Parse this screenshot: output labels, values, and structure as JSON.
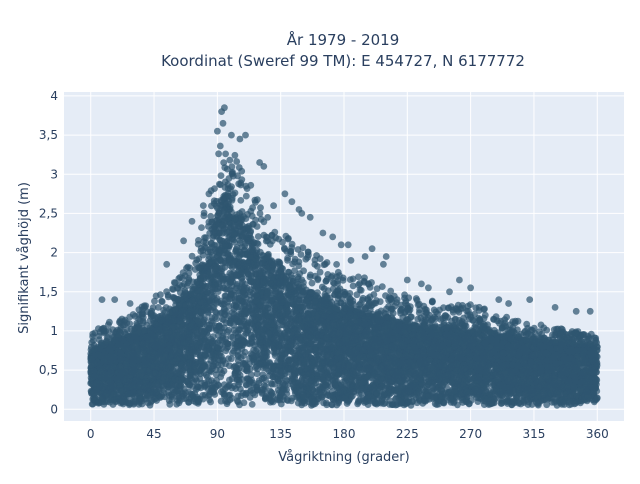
{
  "chart_data": {
    "type": "scatter",
    "title_lines": [
      "År 1979 - 2019",
      "Koordinat (Sweref 99 TM): E 454727, N 6177772"
    ],
    "xlabel": "Vågriktning (grader)",
    "ylabel": "Signifikant våghöjd (m)",
    "xlim": [
      -19,
      379
    ],
    "ylim": [
      -0.15,
      4.05
    ],
    "xticks": [
      0,
      45,
      90,
      135,
      180,
      225,
      270,
      315,
      360
    ],
    "xtick_labels": [
      "0",
      "45",
      "90",
      "135",
      "180",
      "225",
      "270",
      "315",
      "360"
    ],
    "yticks": [
      0,
      0.5,
      1,
      1.5,
      2,
      2.5,
      3,
      3.5,
      4
    ],
    "ytick_labels": [
      "0",
      "0,5",
      "1",
      "1,5",
      "2",
      "2,5",
      "3",
      "3,5",
      "4"
    ],
    "grid": true,
    "marker_color": "#2f5670",
    "upper_envelope": {
      "x": [
        0,
        10,
        20,
        30,
        40,
        50,
        60,
        70,
        80,
        85,
        90,
        95,
        100,
        105,
        110,
        115,
        120,
        130,
        140,
        150,
        160,
        170,
        180,
        195,
        210,
        225,
        240,
        255,
        270,
        285,
        300,
        315,
        330,
        345,
        360
      ],
      "y": [
        0.95,
        1.1,
        1.15,
        1.25,
        1.35,
        1.5,
        1.65,
        1.9,
        2.5,
        2.9,
        3.3,
        3.45,
        3.3,
        3.2,
        3.05,
        2.85,
        2.6,
        2.35,
        2.2,
        2.1,
        2.0,
        1.9,
        1.85,
        1.7,
        1.55,
        1.45,
        1.4,
        1.35,
        1.35,
        1.25,
        1.15,
        1.1,
        1.05,
        1.0,
        0.95
      ]
    },
    "dense_envelope": {
      "x": [
        0,
        20,
        40,
        60,
        75,
        85,
        90,
        95,
        100,
        110,
        120,
        135,
        150,
        165,
        180,
        210,
        240,
        270,
        300,
        330,
        360
      ],
      "y": [
        0.75,
        0.9,
        1.0,
        1.25,
        1.6,
        2.1,
        2.5,
        2.7,
        2.6,
        2.35,
        2.0,
        1.75,
        1.55,
        1.4,
        1.3,
        1.15,
        1.05,
        1.0,
        0.9,
        0.85,
        0.8
      ]
    },
    "outliers": [
      {
        "x": 95,
        "y": 3.85
      },
      {
        "x": 93,
        "y": 3.8
      },
      {
        "x": 94,
        "y": 3.65
      },
      {
        "x": 90,
        "y": 3.55
      },
      {
        "x": 100,
        "y": 3.5
      },
      {
        "x": 110,
        "y": 3.5
      },
      {
        "x": 106,
        "y": 3.45
      },
      {
        "x": 120,
        "y": 3.15
      },
      {
        "x": 123,
        "y": 3.1
      },
      {
        "x": 138,
        "y": 2.75
      },
      {
        "x": 143,
        "y": 2.65
      },
      {
        "x": 148,
        "y": 2.55
      },
      {
        "x": 150,
        "y": 2.5
      },
      {
        "x": 156,
        "y": 2.45
      },
      {
        "x": 130,
        "y": 2.6
      },
      {
        "x": 165,
        "y": 2.25
      },
      {
        "x": 172,
        "y": 2.2
      },
      {
        "x": 178,
        "y": 2.1
      },
      {
        "x": 183,
        "y": 2.1
      },
      {
        "x": 200,
        "y": 2.05
      },
      {
        "x": 195,
        "y": 1.95
      },
      {
        "x": 210,
        "y": 1.95
      },
      {
        "x": 208,
        "y": 1.85
      },
      {
        "x": 185,
        "y": 1.9
      },
      {
        "x": 225,
        "y": 1.65
      },
      {
        "x": 235,
        "y": 1.6
      },
      {
        "x": 240,
        "y": 1.55
      },
      {
        "x": 255,
        "y": 1.5
      },
      {
        "x": 262,
        "y": 1.65
      },
      {
        "x": 270,
        "y": 1.55
      },
      {
        "x": 290,
        "y": 1.4
      },
      {
        "x": 297,
        "y": 1.35
      },
      {
        "x": 312,
        "y": 1.4
      },
      {
        "x": 330,
        "y": 1.3
      },
      {
        "x": 345,
        "y": 1.25
      },
      {
        "x": 355,
        "y": 1.25
      },
      {
        "x": 8,
        "y": 1.4
      },
      {
        "x": 17,
        "y": 1.4
      },
      {
        "x": 28,
        "y": 1.35
      },
      {
        "x": 66,
        "y": 2.15
      },
      {
        "x": 80,
        "y": 2.6
      },
      {
        "x": 84,
        "y": 2.75
      },
      {
        "x": 72,
        "y": 2.4
      },
      {
        "x": 54,
        "y": 1.85
      }
    ],
    "n_points": 9000,
    "seed": 7
  }
}
